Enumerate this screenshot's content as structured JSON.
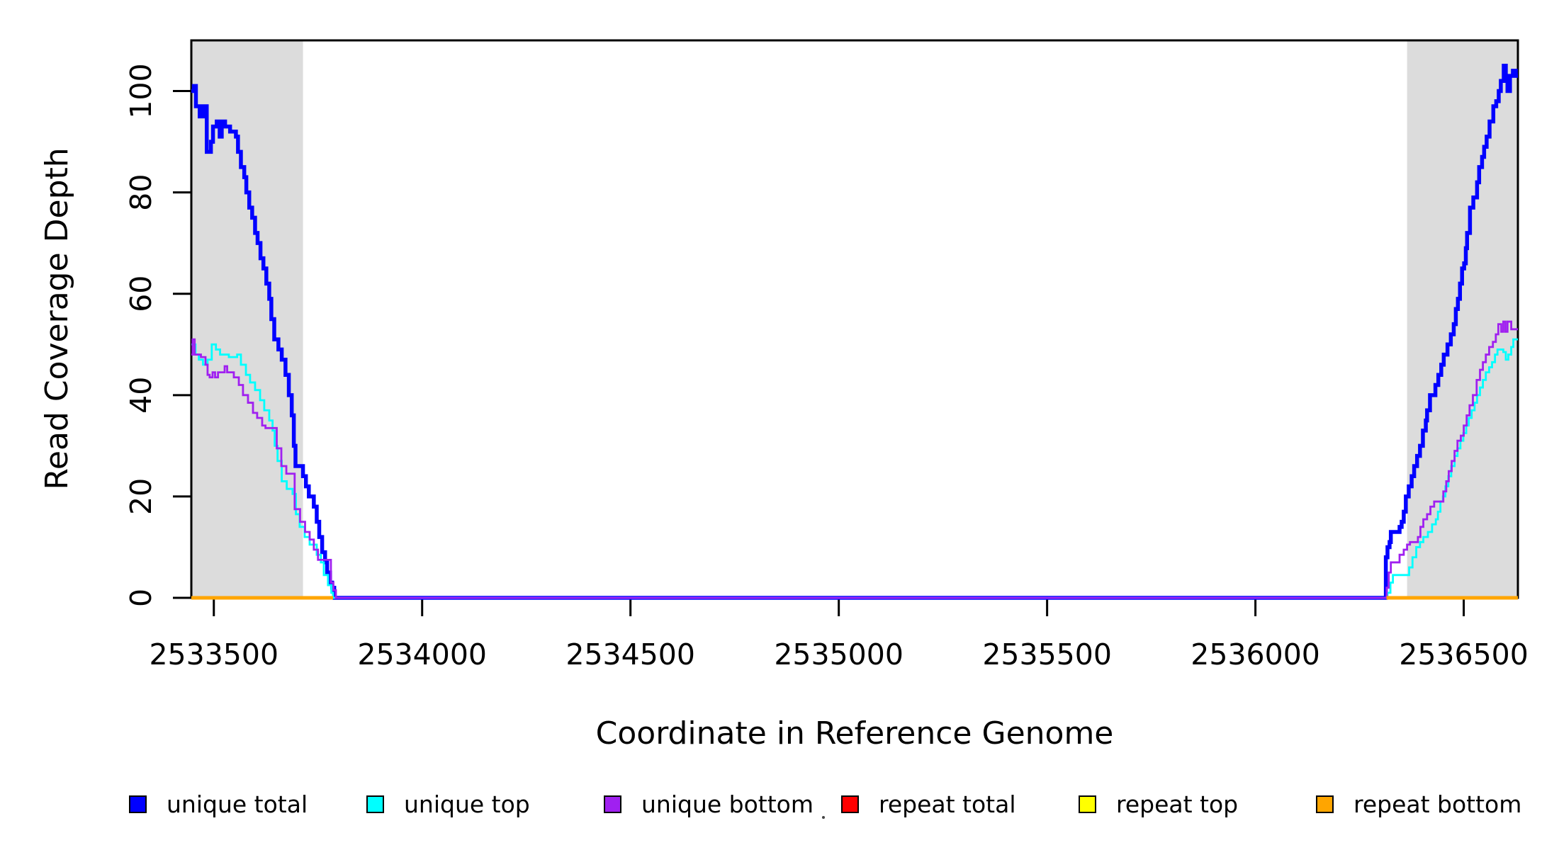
{
  "figure": {
    "xlabel": "Coordinate in Reference Genome",
    "ylabel": "Read Coverage Depth"
  },
  "chart_data": {
    "type": "line",
    "step": true,
    "title": "",
    "xlabel": "Coordinate in Reference Genome",
    "ylabel": "Read Coverage Depth",
    "xlim": [
      2533446,
      2536630
    ],
    "ylim": [
      0,
      110
    ],
    "x_ticks": [
      2533500,
      2534000,
      2534500,
      2535000,
      2535500,
      2536000,
      2536500
    ],
    "y_ticks": [
      0,
      20,
      40,
      60,
      80,
      100
    ],
    "grid": false,
    "legend_position": "bottom",
    "background_regions": {
      "color": "#dcdcdc",
      "regions": [
        [
          2533446,
          2533714
        ],
        [
          2536364,
          2536630
        ]
      ]
    },
    "series": [
      {
        "name": "unique total",
        "color": "#0000ff",
        "width": 5.5,
        "points": [
          [
            2533446,
            100
          ],
          [
            2533452,
            101
          ],
          [
            2533457,
            97
          ],
          [
            2533466,
            95
          ],
          [
            2533474,
            97
          ],
          [
            2533483,
            88
          ],
          [
            2533493,
            90
          ],
          [
            2533498,
            93
          ],
          [
            2533507,
            94
          ],
          [
            2533514,
            91
          ],
          [
            2533519,
            94
          ],
          [
            2533527,
            93
          ],
          [
            2533539,
            92
          ],
          [
            2533553,
            91
          ],
          [
            2533558,
            88
          ],
          [
            2533565,
            85
          ],
          [
            2533573,
            83
          ],
          [
            2533578,
            80
          ],
          [
            2533585,
            77
          ],
          [
            2533592,
            75
          ],
          [
            2533599,
            72
          ],
          [
            2533605,
            70
          ],
          [
            2533612,
            67
          ],
          [
            2533619,
            65
          ],
          [
            2533626,
            62
          ],
          [
            2533633,
            59
          ],
          [
            2533638,
            55
          ],
          [
            2533645,
            51
          ],
          [
            2533655,
            49
          ],
          [
            2533663,
            47
          ],
          [
            2533672,
            44
          ],
          [
            2533680,
            40
          ],
          [
            2533687,
            36
          ],
          [
            2533692,
            30
          ],
          [
            2533696,
            26
          ],
          [
            2533714,
            24
          ],
          [
            2533721,
            22
          ],
          [
            2533728,
            20
          ],
          [
            2533740,
            18
          ],
          [
            2533747,
            15
          ],
          [
            2533753,
            12
          ],
          [
            2533760,
            9
          ],
          [
            2533767,
            7
          ],
          [
            2533772,
            5
          ],
          [
            2533779,
            3
          ],
          [
            2533784,
            2
          ],
          [
            2533789,
            0
          ],
          [
            2536313,
            8
          ],
          [
            2536317,
            10
          ],
          [
            2536322,
            11
          ],
          [
            2536325,
            13
          ],
          [
            2536346,
            14
          ],
          [
            2536351,
            15
          ],
          [
            2536356,
            17
          ],
          [
            2536361,
            20
          ],
          [
            2536368,
            22
          ],
          [
            2536375,
            24
          ],
          [
            2536381,
            26
          ],
          [
            2536388,
            28
          ],
          [
            2536395,
            30
          ],
          [
            2536402,
            33
          ],
          [
            2536409,
            35
          ],
          [
            2536412,
            37
          ],
          [
            2536419,
            40
          ],
          [
            2536432,
            42
          ],
          [
            2536439,
            44
          ],
          [
            2536446,
            46
          ],
          [
            2536452,
            48
          ],
          [
            2536461,
            50
          ],
          [
            2536469,
            52
          ],
          [
            2536476,
            54
          ],
          [
            2536481,
            57
          ],
          [
            2536486,
            59
          ],
          [
            2536491,
            62
          ],
          [
            2536496,
            65
          ],
          [
            2536501,
            66
          ],
          [
            2536505,
            69
          ],
          [
            2536508,
            72
          ],
          [
            2536515,
            77
          ],
          [
            2536523,
            79
          ],
          [
            2536532,
            82
          ],
          [
            2536537,
            85
          ],
          [
            2536544,
            87
          ],
          [
            2536549,
            89
          ],
          [
            2536555,
            91
          ],
          [
            2536562,
            94
          ],
          [
            2536571,
            97
          ],
          [
            2536578,
            98
          ],
          [
            2536584,
            100
          ],
          [
            2536589,
            102
          ],
          [
            2536596,
            105
          ],
          [
            2536601,
            103
          ],
          [
            2536605,
            100
          ],
          [
            2536611,
            103
          ],
          [
            2536618,
            104
          ],
          [
            2536625,
            103
          ]
        ]
      },
      {
        "name": "unique top",
        "color": "#00ffff",
        "width": 2.8,
        "points": [
          [
            2533446,
            50
          ],
          [
            2533456,
            48
          ],
          [
            2533464,
            47
          ],
          [
            2533474,
            46
          ],
          [
            2533485,
            47
          ],
          [
            2533495,
            50
          ],
          [
            2533505,
            49
          ],
          [
            2533515,
            48
          ],
          [
            2533536,
            47.5
          ],
          [
            2533556,
            48
          ],
          [
            2533565,
            46
          ],
          [
            2533577,
            44
          ],
          [
            2533587,
            42.5
          ],
          [
            2533599,
            41
          ],
          [
            2533611,
            39
          ],
          [
            2533621,
            37
          ],
          [
            2533633,
            35
          ],
          [
            2533641,
            33
          ],
          [
            2533646,
            30
          ],
          [
            2533653,
            27
          ],
          [
            2533663,
            23
          ],
          [
            2533675,
            21.5
          ],
          [
            2533689,
            20.5
          ],
          [
            2533697,
            16.5
          ],
          [
            2533706,
            14
          ],
          [
            2533718,
            12
          ],
          [
            2533730,
            10.5
          ],
          [
            2533747,
            8.5
          ],
          [
            2533757,
            7
          ],
          [
            2533764,
            4.5
          ],
          [
            2533774,
            2.5
          ],
          [
            2533782,
            1
          ],
          [
            2533786,
            0
          ],
          [
            2536317,
            1
          ],
          [
            2536324,
            3
          ],
          [
            2536330,
            4.5
          ],
          [
            2536369,
            6
          ],
          [
            2536377,
            8
          ],
          [
            2536386,
            10
          ],
          [
            2536395,
            11
          ],
          [
            2536403,
            12
          ],
          [
            2536414,
            13
          ],
          [
            2536424,
            14.5
          ],
          [
            2536433,
            15.5
          ],
          [
            2536438,
            17
          ],
          [
            2536444,
            19
          ],
          [
            2536450,
            20
          ],
          [
            2536456,
            22
          ],
          [
            2536463,
            24
          ],
          [
            2536470,
            26
          ],
          [
            2536478,
            28
          ],
          [
            2536485,
            29.5
          ],
          [
            2536492,
            31
          ],
          [
            2536499,
            32.5
          ],
          [
            2536506,
            34
          ],
          [
            2536512,
            35.5
          ],
          [
            2536519,
            37
          ],
          [
            2536526,
            38.5
          ],
          [
            2536532,
            40
          ],
          [
            2536539,
            41.5
          ],
          [
            2536546,
            43
          ],
          [
            2536553,
            44.5
          ],
          [
            2536561,
            45.5
          ],
          [
            2536568,
            46.5
          ],
          [
            2536575,
            48
          ],
          [
            2536581,
            49
          ],
          [
            2536595,
            48.5
          ],
          [
            2536601,
            47
          ],
          [
            2536607,
            48
          ],
          [
            2536614,
            49.5
          ],
          [
            2536619,
            51
          ]
        ]
      },
      {
        "name": "unique bottom",
        "color": "#a020f0",
        "width": 2.8,
        "points": [
          [
            2533446,
            48
          ],
          [
            2533449,
            51
          ],
          [
            2533454,
            48
          ],
          [
            2533469,
            47.5
          ],
          [
            2533480,
            46
          ],
          [
            2533485,
            44
          ],
          [
            2533490,
            43.5
          ],
          [
            2533497,
            44.5
          ],
          [
            2533503,
            43.5
          ],
          [
            2533510,
            44.5
          ],
          [
            2533526,
            45.7
          ],
          [
            2533532,
            44.5
          ],
          [
            2533548,
            43.5
          ],
          [
            2533560,
            42
          ],
          [
            2533570,
            40
          ],
          [
            2533582,
            38.5
          ],
          [
            2533594,
            36.5
          ],
          [
            2533604,
            35.5
          ],
          [
            2533616,
            34
          ],
          [
            2533624,
            33.5
          ],
          [
            2533651,
            29.5
          ],
          [
            2533662,
            26
          ],
          [
            2533674,
            24.5
          ],
          [
            2533694,
            17.5
          ],
          [
            2533707,
            15
          ],
          [
            2533719,
            13
          ],
          [
            2533730,
            11.5
          ],
          [
            2533740,
            9.5
          ],
          [
            2533750,
            7.5
          ],
          [
            2533781,
            3
          ],
          [
            2533787,
            1.5
          ],
          [
            2533793,
            0
          ],
          [
            2536315,
            2
          ],
          [
            2536320,
            5
          ],
          [
            2536325,
            7
          ],
          [
            2536346,
            8.5
          ],
          [
            2536356,
            9.5
          ],
          [
            2536364,
            10.5
          ],
          [
            2536371,
            11
          ],
          [
            2536390,
            12
          ],
          [
            2536396,
            14
          ],
          [
            2536403,
            15.5
          ],
          [
            2536412,
            16.5
          ],
          [
            2536420,
            18
          ],
          [
            2536429,
            19
          ],
          [
            2536451,
            21
          ],
          [
            2536458,
            23
          ],
          [
            2536464,
            25
          ],
          [
            2536471,
            27
          ],
          [
            2536478,
            29
          ],
          [
            2536485,
            31
          ],
          [
            2536493,
            32
          ],
          [
            2536500,
            34
          ],
          [
            2536507,
            36
          ],
          [
            2536514,
            38
          ],
          [
            2536522,
            40
          ],
          [
            2536531,
            43
          ],
          [
            2536539,
            45
          ],
          [
            2536546,
            46.5
          ],
          [
            2536553,
            48
          ],
          [
            2536561,
            49.5
          ],
          [
            2536570,
            50.5
          ],
          [
            2536577,
            52
          ],
          [
            2536583,
            54
          ],
          [
            2536590,
            52.5
          ],
          [
            2536595,
            54.5
          ],
          [
            2536600,
            52.5
          ],
          [
            2536605,
            54.5
          ],
          [
            2536614,
            53
          ]
        ]
      },
      {
        "name": "repeat total",
        "color": "#ff0000",
        "width": 5,
        "segments": [
          {
            "x0": 2533446,
            "x1": 2533786,
            "y": 0
          },
          {
            "x0": 2536315,
            "x1": 2536630,
            "y": 0
          }
        ]
      },
      {
        "name": "repeat top",
        "color": "#ffff00",
        "width": 5,
        "segments": [
          {
            "x0": 2533446,
            "x1": 2533786,
            "y": 0
          },
          {
            "x0": 2536315,
            "x1": 2536630,
            "y": 0
          }
        ]
      },
      {
        "name": "repeat bottom",
        "color": "#ffa500",
        "width": 5,
        "segments": [
          {
            "x0": 2533446,
            "x1": 2533786,
            "y": 0
          },
          {
            "x0": 2536315,
            "x1": 2536630,
            "y": 0
          }
        ]
      }
    ],
    "legend": {
      "entries": [
        {
          "label": "unique total",
          "color": "#0000ff"
        },
        {
          "label": "unique top",
          "color": "#00ffff"
        },
        {
          "label": "unique bottom",
          "color": "#a020f0"
        },
        {
          "label": "repeat total",
          "color": "#ff0000"
        },
        {
          "label": "repeat top",
          "color": "#ffff00"
        },
        {
          "label": "repeat bottom",
          "color": "#ffa500"
        }
      ]
    }
  }
}
